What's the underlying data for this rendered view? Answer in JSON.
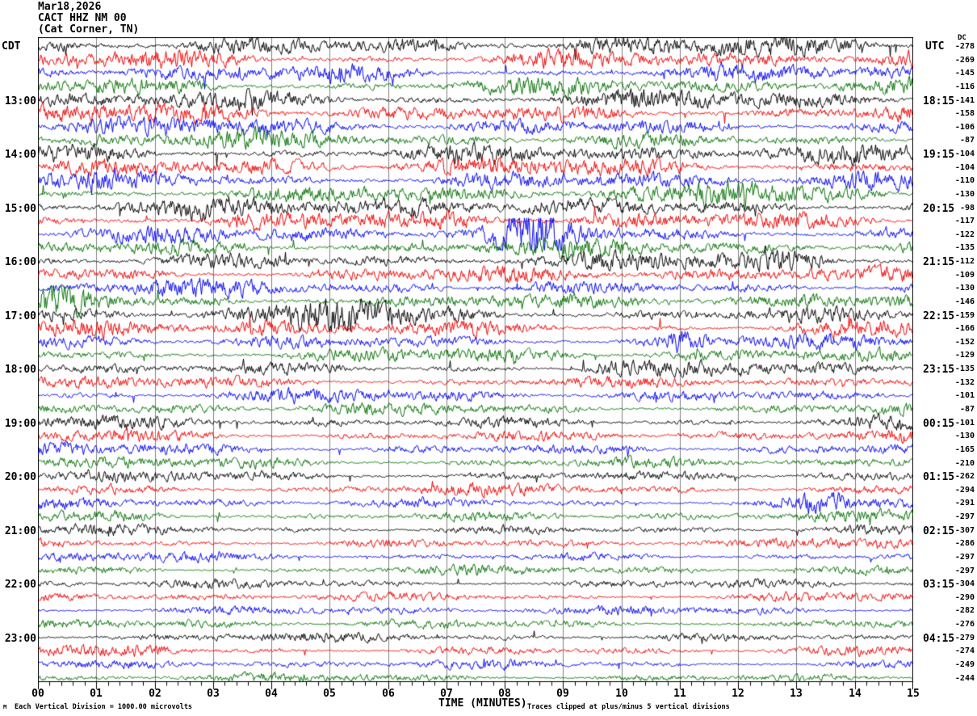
{
  "title": {
    "date": "Mar18,2026",
    "station": "CACT HHZ NM 00",
    "location": "(Cat Corner, TN)"
  },
  "axes": {
    "left_header": "CDT",
    "right_header": "UTC",
    "dc_header": "DC",
    "x_label": "TIME (MINUTES)",
    "x_ticks": [
      "00",
      "01",
      "02",
      "03",
      "04",
      "05",
      "06",
      "07",
      "08",
      "09",
      "10",
      "11",
      "12",
      "13",
      "14",
      "15"
    ]
  },
  "footer": {
    "left_note": "Each Vertical Division = 1000.00 microvolts",
    "right_note": "Traces clipped at plus/minus 5 vertical divisions",
    "corner_mark": "M"
  },
  "colors": {
    "background": "#ffffff",
    "frame": "#000000",
    "grid": "#808080",
    "text": "#000000",
    "trace_cycle": [
      "#000000",
      "#ee0000",
      "#0000ee",
      "#007000"
    ]
  },
  "chart_data": {
    "type": "line",
    "subtype": "helicorder-seismogram",
    "title": "Mar18,2026 CACT HHZ NM 00 (Cat Corner, TN)",
    "xlabel": "TIME (MINUTES)",
    "x_range_minutes": [
      0,
      15
    ],
    "minutes_per_line": 15,
    "grid": "vertical lines at each minute",
    "left_time_axis": "CDT",
    "right_time_axis": "UTC",
    "microvolts_per_division": "1000.00",
    "clip_divisions": 5,
    "rows": [
      {
        "cdt": "",
        "utc": "",
        "dc": -278,
        "amp": 6.5,
        "bursts": []
      },
      {
        "cdt": "",
        "utc": "",
        "dc": -269,
        "amp": 6.0,
        "bursts": []
      },
      {
        "cdt": "",
        "utc": "",
        "dc": -145,
        "amp": 5.5,
        "bursts": []
      },
      {
        "cdt": "",
        "utc": "",
        "dc": -116,
        "amp": 5.5,
        "bursts": []
      },
      {
        "cdt": "13:00",
        "utc": "18:15",
        "dc": -141,
        "amp": 6.5,
        "bursts": []
      },
      {
        "cdt": "",
        "utc": "",
        "dc": -158,
        "amp": 6.0,
        "bursts": []
      },
      {
        "cdt": "",
        "utc": "",
        "dc": -106,
        "amp": 5.5,
        "bursts": []
      },
      {
        "cdt": "",
        "utc": "",
        "dc": -87,
        "amp": 5.5,
        "bursts": []
      },
      {
        "cdt": "14:00",
        "utc": "19:15",
        "dc": -104,
        "amp": 6.0,
        "bursts": []
      },
      {
        "cdt": "",
        "utc": "",
        "dc": -104,
        "amp": 6.0,
        "bursts": []
      },
      {
        "cdt": "",
        "utc": "",
        "dc": -110,
        "amp": 6.0,
        "bursts": []
      },
      {
        "cdt": "",
        "utc": "",
        "dc": -130,
        "amp": 5.5,
        "bursts": [
          {
            "m": 12.1,
            "w": 0.5,
            "g": 2.2
          }
        ]
      },
      {
        "cdt": "15:00",
        "utc": "20:15",
        "dc": -98,
        "amp": 6.0,
        "bursts": [
          {
            "m": 7.1,
            "w": 0.5,
            "g": 3.2
          }
        ]
      },
      {
        "cdt": "",
        "utc": "",
        "dc": -117,
        "amp": 6.0,
        "bursts": []
      },
      {
        "cdt": "",
        "utc": "",
        "dc": -122,
        "amp": 5.5,
        "bursts": [
          {
            "m": 8.5,
            "w": 0.45,
            "g": 2.8
          }
        ]
      },
      {
        "cdt": "",
        "utc": "",
        "dc": -135,
        "amp": 5.5,
        "bursts": []
      },
      {
        "cdt": "16:00",
        "utc": "21:15",
        "dc": -112,
        "amp": 5.5,
        "bursts": [
          {
            "m": 13.0,
            "w": 0.5,
            "g": 2.0
          }
        ]
      },
      {
        "cdt": "",
        "utc": "",
        "dc": -109,
        "amp": 5.0,
        "bursts": []
      },
      {
        "cdt": "",
        "utc": "",
        "dc": -130,
        "amp": 5.0,
        "bursts": []
      },
      {
        "cdt": "",
        "utc": "",
        "dc": -146,
        "amp": 5.0,
        "bursts": [
          {
            "m": 0.55,
            "w": 0.4,
            "g": 2.5
          },
          {
            "m": 5.0,
            "w": 0.3,
            "g": 1.8
          }
        ]
      },
      {
        "cdt": "17:00",
        "utc": "22:15",
        "dc": -159,
        "amp": 5.5,
        "bursts": [
          {
            "m": 5.2,
            "w": 0.5,
            "g": 3.0
          }
        ]
      },
      {
        "cdt": "",
        "utc": "",
        "dc": -166,
        "amp": 5.0,
        "bursts": [
          {
            "m": 3.5,
            "w": 0.6,
            "g": 1.8
          }
        ]
      },
      {
        "cdt": "",
        "utc": "",
        "dc": -152,
        "amp": 4.5,
        "bursts": [
          {
            "m": 11.05,
            "w": 0.25,
            "g": 2.5
          }
        ]
      },
      {
        "cdt": "",
        "utc": "",
        "dc": -129,
        "amp": 4.5,
        "bursts": []
      },
      {
        "cdt": "18:00",
        "utc": "23:15",
        "dc": -135,
        "amp": 4.5,
        "bursts": [
          {
            "m": 9.7,
            "w": 0.3,
            "g": 1.8
          }
        ]
      },
      {
        "cdt": "",
        "utc": "",
        "dc": -132,
        "amp": 4.0,
        "bursts": []
      },
      {
        "cdt": "",
        "utc": "",
        "dc": -101,
        "amp": 4.0,
        "bursts": []
      },
      {
        "cdt": "",
        "utc": "",
        "dc": -87,
        "amp": 3.8,
        "bursts": []
      },
      {
        "cdt": "19:00",
        "utc": "00:15",
        "dc": -101,
        "amp": 4.0,
        "bursts": []
      },
      {
        "cdt": "",
        "utc": "",
        "dc": -130,
        "amp": 4.0,
        "bursts": []
      },
      {
        "cdt": "",
        "utc": "",
        "dc": -165,
        "amp": 3.8,
        "bursts": []
      },
      {
        "cdt": "",
        "utc": "",
        "dc": -210,
        "amp": 3.8,
        "bursts": []
      },
      {
        "cdt": "20:00",
        "utc": "01:15",
        "dc": -262,
        "amp": 3.5,
        "bursts": []
      },
      {
        "cdt": "",
        "utc": "",
        "dc": -294,
        "amp": 3.5,
        "bursts": []
      },
      {
        "cdt": "",
        "utc": "",
        "dc": -291,
        "amp": 3.5,
        "bursts": [
          {
            "m": 13.45,
            "w": 0.3,
            "g": 2.2
          }
        ]
      },
      {
        "cdt": "",
        "utc": "",
        "dc": -297,
        "amp": 3.5,
        "bursts": []
      },
      {
        "cdt": "21:00",
        "utc": "02:15",
        "dc": -307,
        "amp": 3.2,
        "bursts": []
      },
      {
        "cdt": "",
        "utc": "",
        "dc": -286,
        "amp": 3.2,
        "bursts": []
      },
      {
        "cdt": "",
        "utc": "",
        "dc": -297,
        "amp": 3.0,
        "bursts": []
      },
      {
        "cdt": "",
        "utc": "",
        "dc": -297,
        "amp": 3.0,
        "bursts": []
      },
      {
        "cdt": "22:00",
        "utc": "03:15",
        "dc": -304,
        "amp": 3.0,
        "bursts": []
      },
      {
        "cdt": "",
        "utc": "",
        "dc": -290,
        "amp": 3.0,
        "bursts": []
      },
      {
        "cdt": "",
        "utc": "",
        "dc": -282,
        "amp": 3.0,
        "bursts": []
      },
      {
        "cdt": "",
        "utc": "",
        "dc": -276,
        "amp": 3.0,
        "bursts": []
      },
      {
        "cdt": "23:00",
        "utc": "04:15",
        "dc": -279,
        "amp": 3.0,
        "bursts": []
      },
      {
        "cdt": "",
        "utc": "",
        "dc": -274,
        "amp": 3.0,
        "bursts": [
          {
            "m": 2.0,
            "w": 0.4,
            "g": 1.6
          }
        ]
      },
      {
        "cdt": "",
        "utc": "",
        "dc": -249,
        "amp": 2.8,
        "bursts": []
      },
      {
        "cdt": "",
        "utc": "",
        "dc": -244,
        "amp": 2.8,
        "bursts": []
      }
    ]
  }
}
